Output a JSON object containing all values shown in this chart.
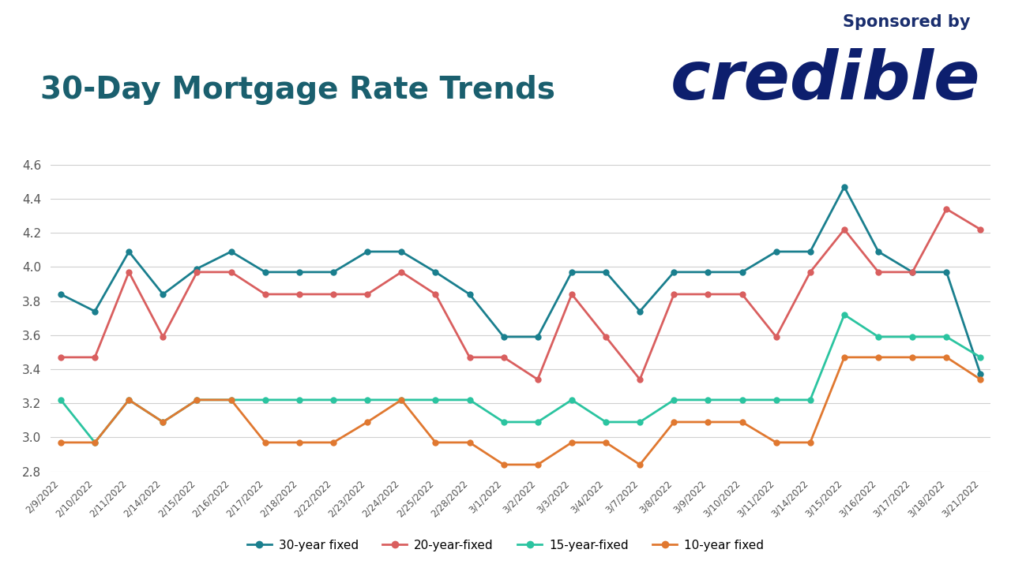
{
  "title": "30-Day Mortgage Rate Trends",
  "sponsored_by": "Sponsored by",
  "sponsor": "credible",
  "dates": [
    "2/9/2022",
    "2/10/2022",
    "2/11/2022",
    "2/14/2022",
    "2/15/2022",
    "2/16/2022",
    "2/17/2022",
    "2/18/2022",
    "2/22/2022",
    "2/23/2022",
    "2/24/2022",
    "2/25/2022",
    "2/28/2022",
    "3/1/2022",
    "3/2/2022",
    "3/3/2022",
    "3/4/2022",
    "3/7/2022",
    "3/8/2022",
    "3/9/2022",
    "3/10/2022",
    "3/11/2022",
    "3/14/2022",
    "3/15/2022",
    "3/16/2022",
    "3/17/2022",
    "3/18/2022",
    "3/21/2022"
  ],
  "series_30yr": [
    3.84,
    3.74,
    4.09,
    3.84,
    3.99,
    4.09,
    3.97,
    3.97,
    3.97,
    4.09,
    4.09,
    3.97,
    3.84,
    3.59,
    3.59,
    3.97,
    3.97,
    3.74,
    3.97,
    3.97,
    3.97,
    4.09,
    4.09,
    4.47,
    4.09,
    3.97,
    3.97,
    3.37
  ],
  "series_20yr": [
    3.47,
    3.47,
    3.97,
    3.59,
    3.97,
    3.97,
    3.84,
    3.84,
    3.84,
    3.84,
    3.97,
    3.84,
    3.47,
    3.47,
    3.34,
    3.84,
    3.59,
    3.34,
    3.84,
    3.84,
    3.84,
    3.59,
    3.97,
    4.22,
    3.97,
    3.97,
    4.34,
    4.22
  ],
  "series_15yr": [
    3.22,
    2.97,
    3.22,
    3.09,
    3.22,
    3.22,
    3.22,
    3.22,
    3.22,
    3.22,
    3.22,
    3.22,
    3.22,
    3.09,
    3.09,
    3.22,
    3.09,
    3.09,
    3.22,
    3.22,
    3.22,
    3.22,
    3.22,
    3.72,
    3.59,
    3.59,
    3.59,
    3.47
  ],
  "series_10yr": [
    2.97,
    2.97,
    3.22,
    3.09,
    3.22,
    3.22,
    2.97,
    2.97,
    2.97,
    3.09,
    3.22,
    2.97,
    2.97,
    2.84,
    2.84,
    2.97,
    2.97,
    2.84,
    3.09,
    3.09,
    3.09,
    2.97,
    2.97,
    3.47,
    3.47,
    3.47,
    3.47,
    3.34
  ],
  "color_30yr": "#1a7f8e",
  "color_20yr": "#d95f5f",
  "color_15yr": "#2bc4a0",
  "color_10yr": "#e07830",
  "ylim_min": 2.8,
  "ylim_max": 4.7,
  "yticks": [
    2.8,
    3.0,
    3.2,
    3.4,
    3.6,
    3.8,
    4.0,
    4.2,
    4.4,
    4.6
  ],
  "background_color": "#ffffff",
  "title_color": "#1a5f6e",
  "title_fontsize": 28,
  "sponsored_by_fontsize": 15,
  "credible_fontsize": 62,
  "legend_labels": [
    "30-year fixed",
    "20-year-fixed",
    "15-year-fixed",
    "10-year fixed"
  ],
  "credible_color": "#0d1f6e",
  "sponsored_by_color": "#1a2e6e"
}
